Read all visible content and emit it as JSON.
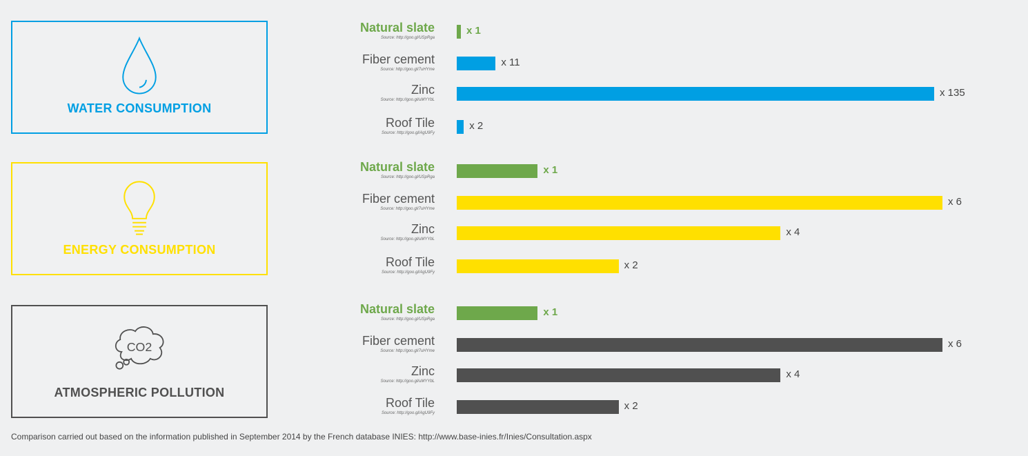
{
  "chart_data": [
    {
      "type": "bar",
      "orientation": "horizontal",
      "title": "WATER CONSUMPTION",
      "icon": "water-drop-icon",
      "color": "#009fe3",
      "highlight_color": "#6ea84b",
      "categories": [
        "Natural slate",
        "Fiber cement",
        "Zinc",
        "Roof Tile"
      ],
      "values": [
        1,
        11,
        135,
        2
      ],
      "value_labels": [
        "x 1",
        "x 11",
        "x 135",
        "x 2"
      ],
      "sources": [
        "Source: http://goo.gl/USpRga",
        "Source: http://goo.gl/7uHYme",
        "Source: http://goo.gl/uMYYbL",
        "Source: http://goo.gl/AgU9Fy"
      ],
      "highlight_index": 0
    },
    {
      "type": "bar",
      "orientation": "horizontal",
      "title": "ENERGY CONSUMPTION",
      "icon": "lightbulb-icon",
      "color": "#ffe000",
      "highlight_color": "#6ea84b",
      "categories": [
        "Natural slate",
        "Fiber cement",
        "Zinc",
        "Roof Tile"
      ],
      "values": [
        1,
        6,
        4,
        2
      ],
      "value_labels": [
        "x 1",
        "x 6",
        "x 4",
        "x 2"
      ],
      "sources": [
        "Source: http://goo.gl/USpRga",
        "Source: http://goo.gl/7uHYme",
        "Source: http://goo.gl/uMYYbL",
        "Source: http://goo.gl/AgU9Fy"
      ],
      "highlight_index": 0
    },
    {
      "type": "bar",
      "orientation": "horizontal",
      "title": "ATMOSPHERIC POLLUTION",
      "icon": "co2-cloud-icon",
      "icon_text": "CO2",
      "color": "#505050",
      "highlight_color": "#6ea84b",
      "categories": [
        "Natural slate",
        "Fiber cement",
        "Zinc",
        "Roof Tile"
      ],
      "values": [
        1,
        6,
        4,
        2
      ],
      "value_labels": [
        "x 1",
        "x 6",
        "x 4",
        "x 2"
      ],
      "sources": [
        "Source: http://goo.gl/USpRga",
        "Source: http://goo.gl/7uHYme",
        "Source: http://goo.gl/uMYYbL",
        "Source: http://goo.gl/AgU9Fy"
      ],
      "highlight_index": 0
    }
  ],
  "colors": {
    "water": "#009fe3",
    "energy": "#ffe000",
    "pollution": "#505050",
    "slate": "#6ea84b",
    "background": "#eff0f1"
  },
  "footnote": "Comparison carried out based on the information published in September 2014 by the French database INIES: http://www.base-inies.fr/Inies/Consultation.aspx"
}
